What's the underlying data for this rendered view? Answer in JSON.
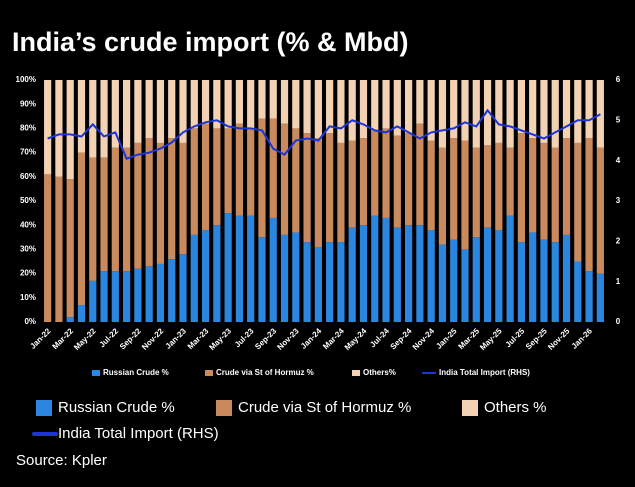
{
  "chart_data": {
    "type": "stacked_bar_line",
    "title": "India’s crude import (% & Mbd)",
    "source": "Source: Kpler",
    "categories": [
      "Jan-22",
      null,
      "Mar-22",
      null,
      "May-22",
      null,
      "Jul-22",
      null,
      "Sep-22",
      null,
      "Nov-22",
      null,
      "Jan-23",
      null,
      "Mar-23",
      null,
      "May-23",
      null,
      "Jul-23",
      null,
      "Sep-23",
      null,
      "Nov-23",
      null,
      "Jan-24",
      null,
      "Mar-24",
      null,
      "May-24",
      null,
      "Jul-24",
      null,
      "Sep-24",
      null,
      "Nov-24",
      null,
      "Jan-25",
      null,
      "Mar-25",
      null,
      "May-25",
      null,
      "Jul-25",
      null,
      "Sep-25",
      null,
      "Nov-25",
      null,
      "Jan-26",
      null
    ],
    "series": [
      {
        "name": "Russian Crude %",
        "color": "#2b86e0",
        "values": [
          0,
          0,
          2,
          7,
          17,
          21,
          21,
          21,
          22,
          23,
          24,
          26,
          28,
          36,
          38,
          40,
          45,
          44,
          44,
          35,
          43,
          36,
          37,
          33,
          31,
          33,
          33,
          39,
          40,
          44,
          43,
          39,
          40,
          40,
          38,
          32,
          34,
          30,
          35,
          39,
          38,
          44,
          33,
          37,
          34,
          33,
          36,
          25,
          21,
          20
        ]
      },
      {
        "name": "Crude via St of Hormuz %",
        "color": "#c98a5e",
        "values": [
          61,
          60,
          57,
          63,
          51,
          47,
          51,
          51,
          52,
          53,
          50,
          50,
          46,
          44,
          44,
          40,
          35,
          38,
          36,
          49,
          41,
          46,
          43,
          45,
          45,
          45,
          41,
          36,
          36,
          35,
          37,
          38,
          38,
          42,
          37,
          40,
          42,
          45,
          37,
          34,
          36,
          28,
          45,
          39,
          40,
          39,
          40,
          49,
          55,
          52
        ]
      },
      {
        "name": "Others%",
        "color": "#f3d2b3",
        "values": [
          39,
          40,
          41,
          30,
          32,
          32,
          28,
          28,
          26,
          24,
          26,
          24,
          26,
          20,
          18,
          20,
          20,
          18,
          20,
          16,
          16,
          18,
          20,
          22,
          24,
          22,
          26,
          25,
          24,
          21,
          20,
          23,
          22,
          18,
          25,
          28,
          24,
          25,
          28,
          27,
          26,
          28,
          22,
          24,
          26,
          28,
          24,
          26,
          24,
          28
        ]
      },
      {
        "name": "India Total Import (RHS)",
        "color": "#1d35d6",
        "axis": "y2",
        "values": [
          4.55,
          4.65,
          4.65,
          4.6,
          4.9,
          4.6,
          4.7,
          4.05,
          4.15,
          4.2,
          4.3,
          4.45,
          4.7,
          4.85,
          4.95,
          5.0,
          4.85,
          4.8,
          4.8,
          4.75,
          4.3,
          4.15,
          4.5,
          4.55,
          4.5,
          4.85,
          4.8,
          5.0,
          4.9,
          4.75,
          4.7,
          4.85,
          4.7,
          4.55,
          4.7,
          4.75,
          4.8,
          4.95,
          4.85,
          5.25,
          4.9,
          4.85,
          4.75,
          4.65,
          4.55,
          4.7,
          4.85,
          5.0,
          5.0,
          5.15
        ]
      }
    ],
    "legend_labels": [
      "Russian Crude %",
      "Crude via St of Hormuz %",
      "Others %",
      "India Total Import (RHS)"
    ],
    "ylim": [
      0,
      100
    ],
    "yticks": [
      {
        "value": 0,
        "label": "0%"
      },
      {
        "value": 10,
        "label": "10%"
      },
      {
        "value": 20,
        "label": "20%"
      },
      {
        "value": 30,
        "label": "30%"
      },
      {
        "value": 40,
        "label": "40%"
      },
      {
        "value": 50,
        "label": "50%"
      },
      {
        "value": 60,
        "label": "60%"
      },
      {
        "value": 70,
        "label": "70%"
      },
      {
        "value": 80,
        "label": "80%"
      },
      {
        "value": 90,
        "label": "90%"
      },
      {
        "value": 100,
        "label": "100%"
      }
    ],
    "y2lim": [
      0,
      6
    ],
    "y2ticks": [
      0,
      1,
      2,
      3,
      4,
      5,
      6
    ]
  }
}
